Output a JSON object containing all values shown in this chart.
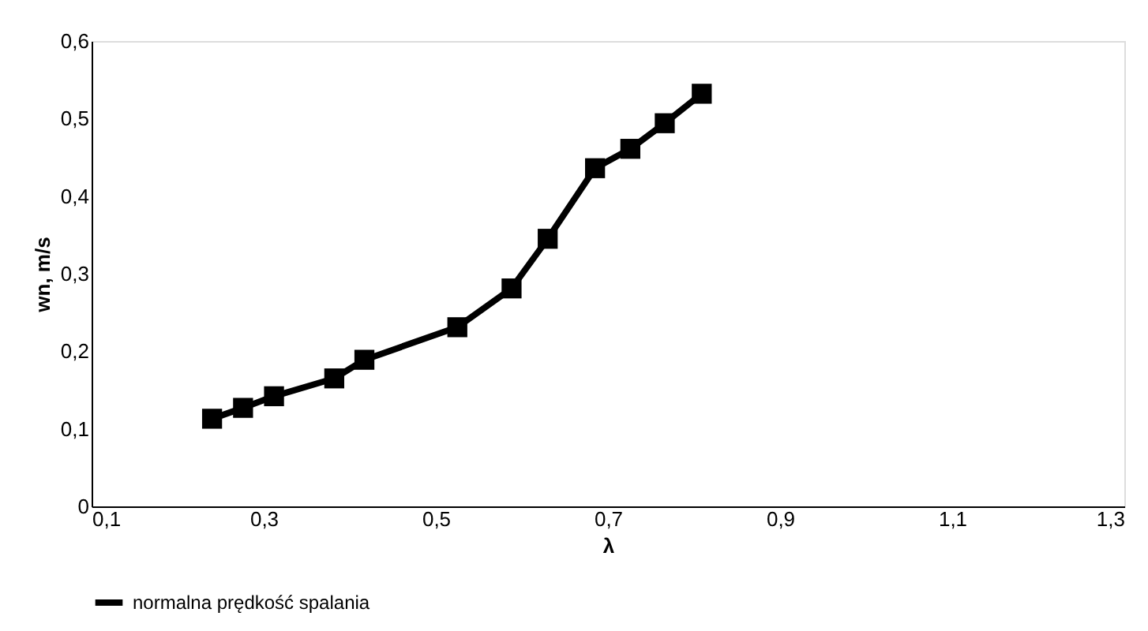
{
  "chart_data": {
    "type": "line",
    "xlabel": "λ",
    "ylabel": "wn, m/s",
    "x": [
      0.24,
      0.276,
      0.312,
      0.382,
      0.417,
      0.525,
      0.588,
      0.63,
      0.685,
      0.726,
      0.766,
      0.809
    ],
    "series": [
      {
        "name": "normalna prędkość spalania",
        "color": "#000000",
        "values": [
          0.113,
          0.127,
          0.142,
          0.165,
          0.189,
          0.231,
          0.281,
          0.345,
          0.436,
          0.461,
          0.494,
          0.532
        ]
      }
    ],
    "xlim": [
      0.1,
      1.3
    ],
    "xticks": [
      {
        "value": 0.1,
        "label": "0,1"
      },
      {
        "value": 0.3,
        "label": "0,3"
      },
      {
        "value": 0.5,
        "label": "0,5"
      },
      {
        "value": 0.7,
        "label": "0,7"
      },
      {
        "value": 0.9,
        "label": "0,9"
      },
      {
        "value": 1.1,
        "label": "1,1"
      },
      {
        "value": 1.3,
        "label": "1,3"
      }
    ],
    "ylim": [
      0,
      0.6
    ],
    "yticks": [
      0,
      {
        "value": 0.1,
        "label": "0,1"
      },
      {
        "value": 0.2,
        "label": "0,2"
      },
      {
        "value": 0.3,
        "label": "0,3"
      },
      {
        "value": 0.4,
        "label": "0,4"
      },
      {
        "value": 0.5,
        "label": "0,5"
      },
      {
        "value": 0.6,
        "label": "0,6"
      }
    ],
    "grid": false,
    "legend": "bottom",
    "marker": "square",
    "line_style": "solid"
  }
}
